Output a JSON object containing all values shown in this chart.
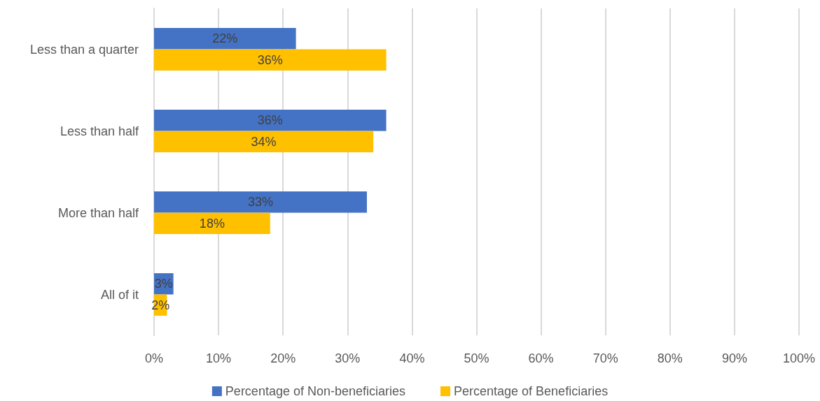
{
  "chart_data": {
    "type": "bar",
    "orientation": "horizontal",
    "categories": [
      "Less than a quarter",
      "Less than half",
      "More than half",
      "All of it"
    ],
    "series": [
      {
        "name": "Percentage of Non-beneficiaries",
        "color": "#4472c4",
        "values": [
          22,
          36,
          33,
          3
        ],
        "value_labels": [
          "22%",
          "36%",
          "33%",
          "3%"
        ]
      },
      {
        "name": "Percentage of Beneficiaries",
        "color": "#ffc000",
        "values": [
          36,
          34,
          18,
          2
        ],
        "value_labels": [
          "36%",
          "34%",
          "18%",
          "2%"
        ]
      }
    ],
    "xlim": [
      0,
      100
    ],
    "xticks": [
      {
        "value": 0,
        "label": "0%"
      },
      {
        "value": 10,
        "label": "10%"
      },
      {
        "value": 20,
        "label": "20%"
      },
      {
        "value": 30,
        "label": "30%"
      },
      {
        "value": 40,
        "label": "40%"
      },
      {
        "value": 50,
        "label": "50%"
      },
      {
        "value": 60,
        "label": "60%"
      },
      {
        "value": 70,
        "label": "70%"
      },
      {
        "value": 80,
        "label": "80%"
      },
      {
        "value": 90,
        "label": "90%"
      },
      {
        "value": 100,
        "label": "100%"
      }
    ],
    "grid": "x",
    "legend": "bottom"
  }
}
